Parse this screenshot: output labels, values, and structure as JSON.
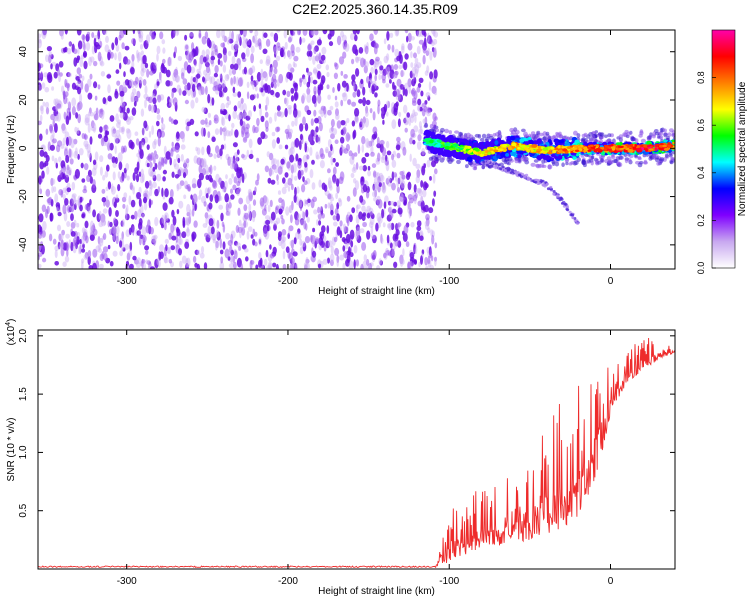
{
  "title": "C2E2.2025.360.14.35.R09",
  "colors": {
    "snr_line": "#ee2b2b",
    "frame": "#000000"
  },
  "chart_data": [
    {
      "type": "heatmap",
      "title": "C2E2.2025.360.14.35.R09",
      "xlabel": "Height of straight line (km)",
      "ylabel": "Frequency (Hz)",
      "xlim": [
        -355,
        40
      ],
      "ylim": [
        -50,
        49
      ],
      "xticks": [
        -300,
        -200,
        -100,
        0
      ],
      "yticks": [
        -40,
        -20,
        0,
        20,
        40
      ],
      "colorbar": {
        "label": "Normalized spectral amplitude",
        "range": [
          0,
          1
        ],
        "ticks": [
          "0.0",
          "0.2",
          "0.4",
          "0.6",
          "0.8"
        ],
        "tick_values": [
          0.0,
          0.2,
          0.4,
          0.6,
          0.8
        ],
        "colormap": [
          "#ffffff",
          "#c8a8f0",
          "#7f00ff",
          "#0000ff",
          "#00ffff",
          "#00ff00",
          "#ffff00",
          "#ff7f00",
          "#ff0000",
          "#ff00aa"
        ]
      },
      "noise_region": {
        "x": [
          -355,
          -112
        ],
        "amplitude": [
          0.05,
          0.25
        ]
      },
      "signal_ridge": {
        "x": [
          -115,
          -100,
          -80,
          -60,
          -40,
          -20,
          0,
          20,
          40
        ],
        "frequency": [
          3,
          1,
          -2,
          1,
          -1,
          0,
          0,
          0,
          1
        ],
        "amplitude": [
          0.5,
          0.6,
          0.7,
          0.8,
          0.75,
          0.85,
          0.9,
          0.95,
          0.9
        ]
      },
      "secondary_branch": {
        "x": [
          -80,
          -60,
          -40,
          -30,
          -20
        ],
        "frequency": [
          -5,
          -10,
          -15,
          -22,
          -31
        ]
      }
    },
    {
      "type": "line",
      "xlabel": "Height of straight line (km)",
      "ylabel": "SNR (10 * v/v)",
      "multiplier": "(x10",
      "multiplier_exp": "4",
      "multiplier_close": ")",
      "xlim": [
        -355,
        40
      ],
      "ylim": [
        0,
        2.05
      ],
      "xticks": [
        -300,
        -200,
        -100,
        0
      ],
      "yticks": [
        "0.5",
        "1.0",
        "1.5",
        "2.0"
      ],
      "ytick_values": [
        0.5,
        1.0,
        1.5,
        2.0
      ],
      "baseline": {
        "x": [
          -355,
          -108
        ],
        "value": 0.02
      },
      "envelope": {
        "x": [
          -108,
          -100,
          -90,
          -80,
          -70,
          -60,
          -50,
          -40,
          -30,
          -20,
          -10,
          0,
          10,
          20,
          30,
          40
        ],
        "low": [
          0.02,
          0.06,
          0.12,
          0.18,
          0.2,
          0.22,
          0.25,
          0.3,
          0.35,
          0.45,
          0.75,
          1.3,
          1.6,
          1.7,
          1.8,
          1.85
        ],
        "high": [
          0.08,
          0.55,
          0.6,
          0.75,
          0.7,
          0.9,
          0.95,
          1.25,
          1.45,
          1.6,
          1.7,
          1.8,
          1.9,
          2.0,
          1.95,
          1.9
        ]
      }
    }
  ]
}
